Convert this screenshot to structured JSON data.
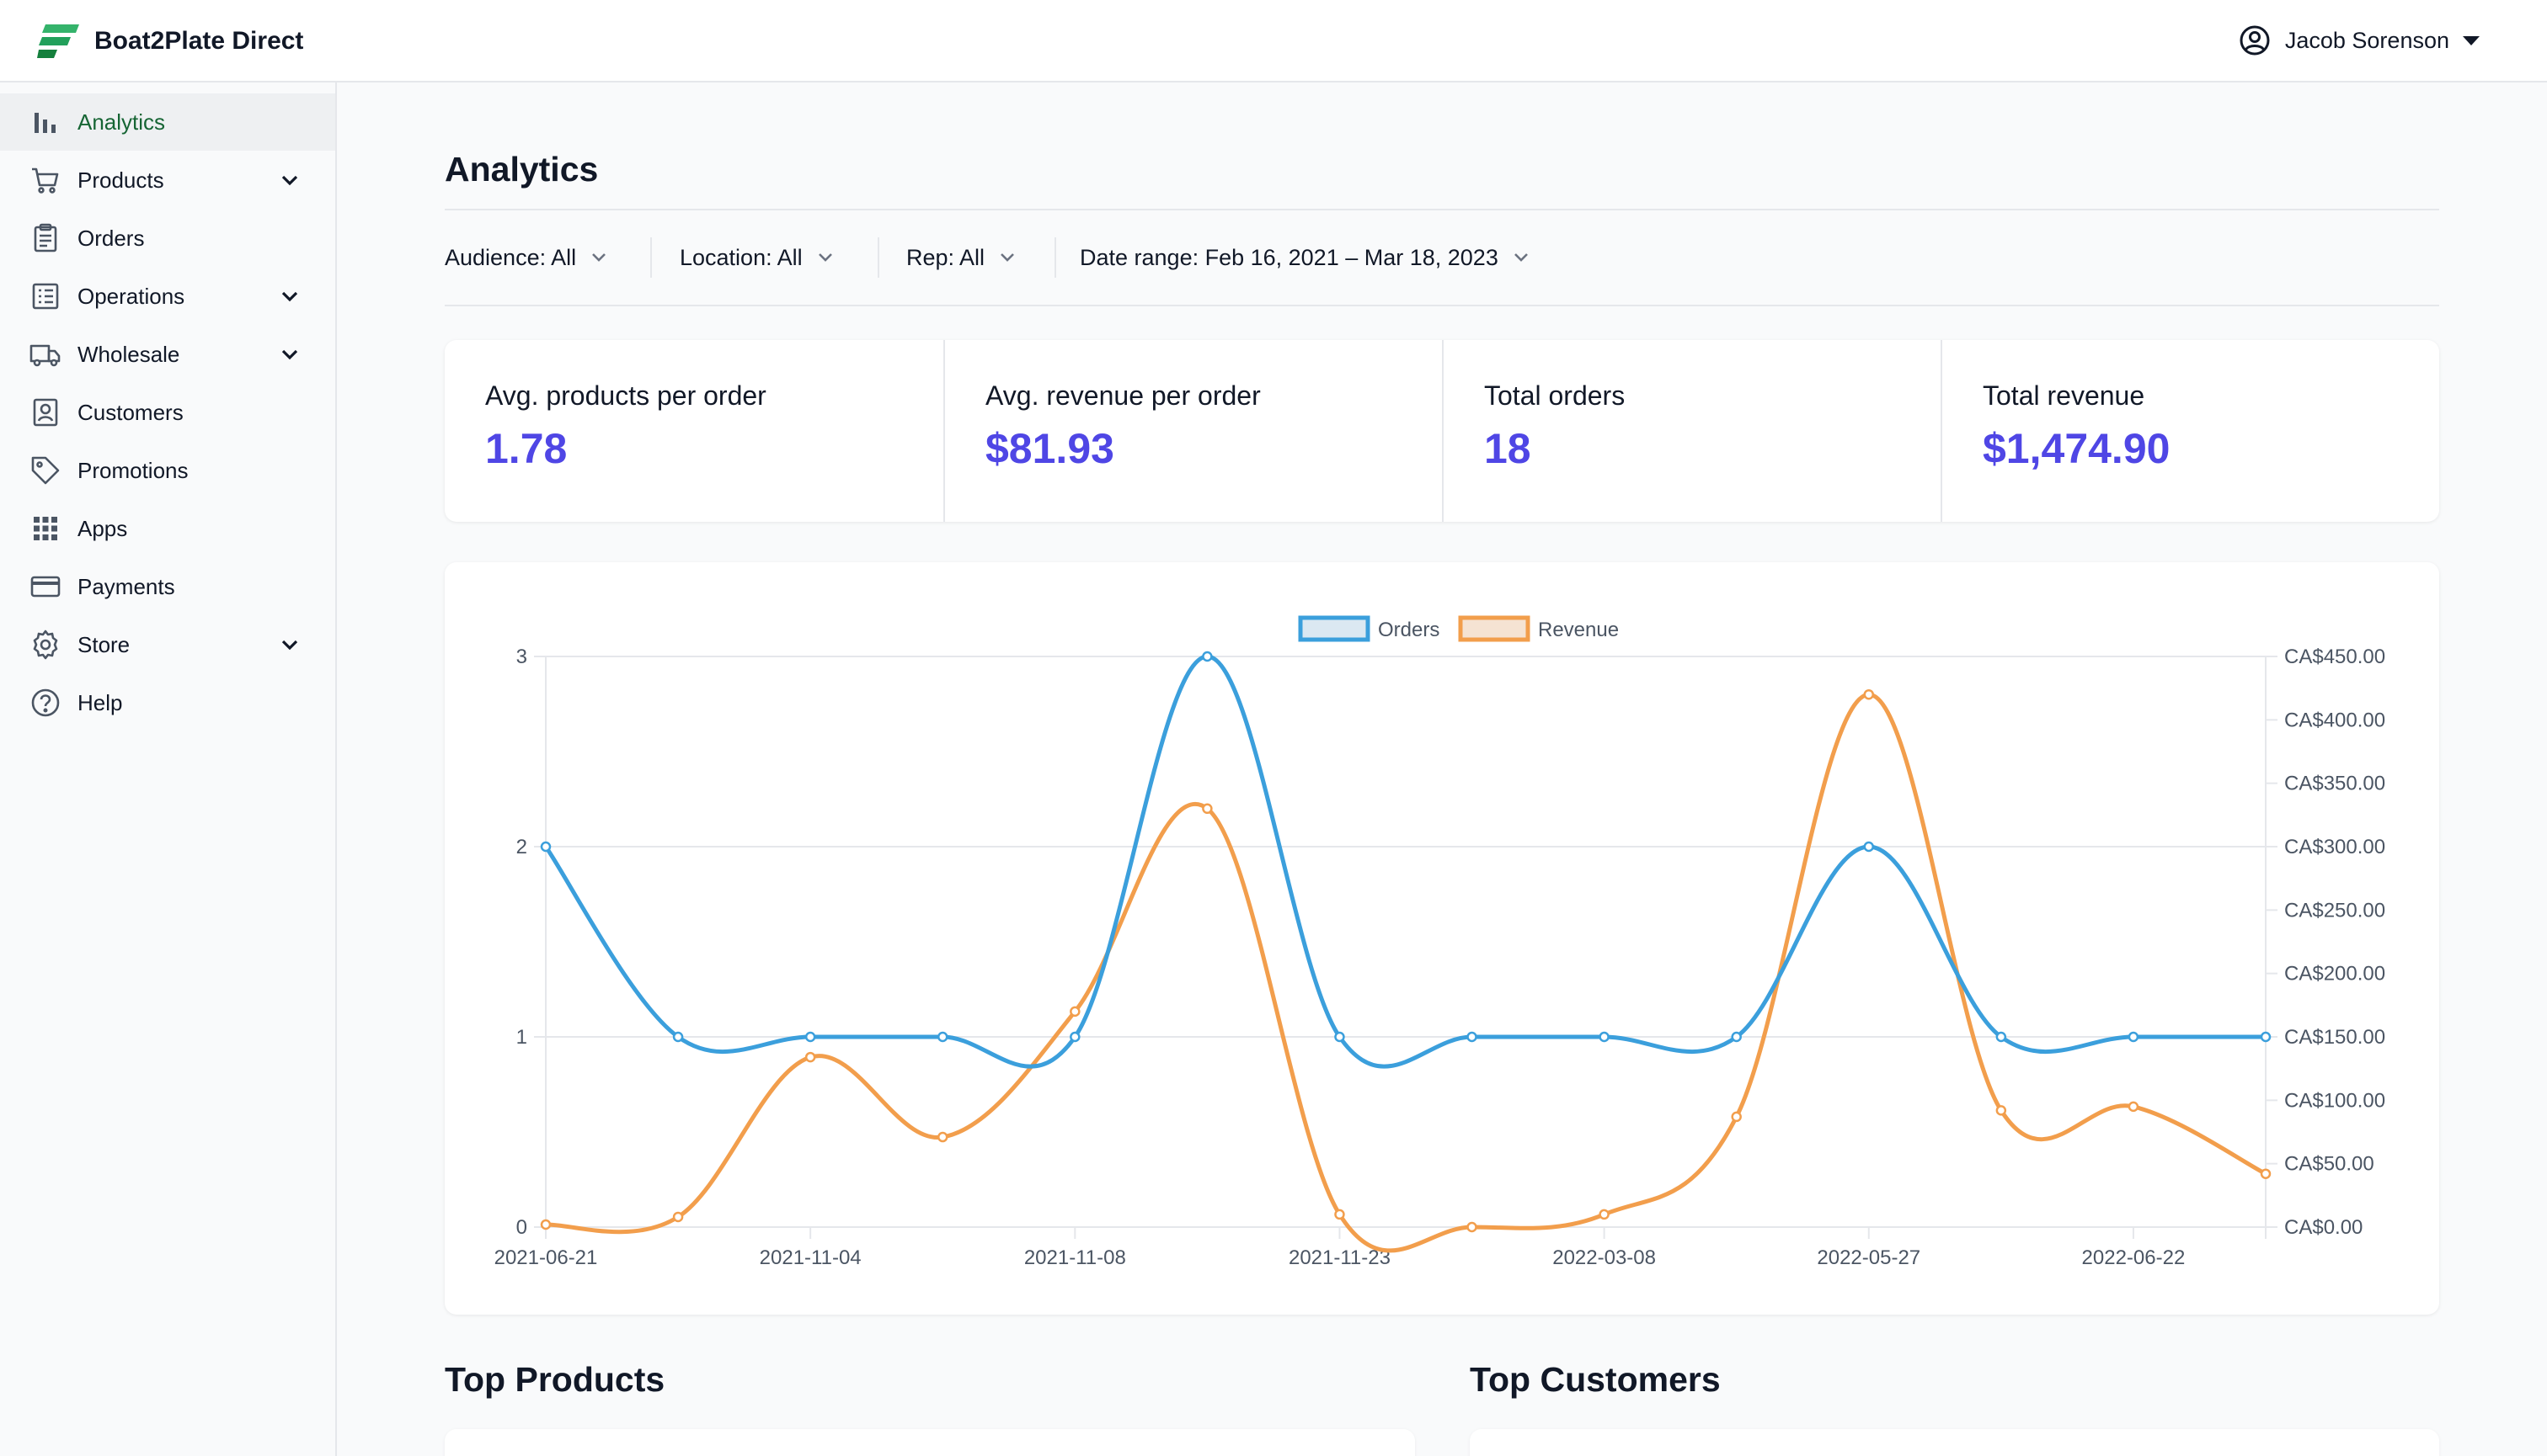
{
  "header": {
    "brand": "Boat2Plate Direct",
    "user": "Jacob Sorenson",
    "brand_color": "#22a05b"
  },
  "sidebar": {
    "items": [
      {
        "label": "Analytics",
        "icon": "bar-chart-icon",
        "active": true,
        "expandable": false
      },
      {
        "label": "Products",
        "icon": "cart-icon",
        "active": false,
        "expandable": true
      },
      {
        "label": "Orders",
        "icon": "clipboard-icon",
        "active": false,
        "expandable": false
      },
      {
        "label": "Operations",
        "icon": "checklist-icon",
        "active": false,
        "expandable": true
      },
      {
        "label": "Wholesale",
        "icon": "truck-icon",
        "active": false,
        "expandable": true
      },
      {
        "label": "Customers",
        "icon": "contact-icon",
        "active": false,
        "expandable": false
      },
      {
        "label": "Promotions",
        "icon": "tag-icon",
        "active": false,
        "expandable": false
      },
      {
        "label": "Apps",
        "icon": "grid-icon",
        "active": false,
        "expandable": false
      },
      {
        "label": "Payments",
        "icon": "credit-card-icon",
        "active": false,
        "expandable": false
      },
      {
        "label": "Store",
        "icon": "gear-icon",
        "active": false,
        "expandable": true
      },
      {
        "label": "Help",
        "icon": "help-circle-icon",
        "active": false,
        "expandable": false
      }
    ]
  },
  "main": {
    "title": "Analytics",
    "filters": {
      "audience": "Audience: All",
      "location": "Location: All",
      "rep": "Rep: All",
      "date_range": "Date range: Feb 16, 2021 – Mar 18, 2023"
    },
    "stats": [
      {
        "label": "Avg. products per order",
        "value": "1.78"
      },
      {
        "label": "Avg. revenue per order",
        "value": "$81.93"
      },
      {
        "label": "Total orders",
        "value": "18"
      },
      {
        "label": "Total revenue",
        "value": "$1,474.90"
      }
    ],
    "sections": {
      "top_products": "Top Products",
      "top_customers": "Top Customers"
    }
  },
  "chart_data": {
    "type": "line",
    "x": [
      "2021-06-21",
      "",
      "2021-11-04",
      "",
      "2021-11-08",
      "",
      "2021-11-23",
      "",
      "2022-03-08",
      "",
      "2022-05-27",
      "",
      "2022-06-22",
      ""
    ],
    "series": [
      {
        "name": "Orders",
        "axis": "left",
        "color": "#3b9fdc",
        "values": [
          2,
          1,
          1,
          1,
          1,
          3,
          1,
          1,
          1,
          1,
          2,
          1,
          1,
          1
        ]
      },
      {
        "name": "Revenue",
        "axis": "right",
        "color": "#f29e4c",
        "values": [
          2,
          8,
          134,
          71,
          170,
          330,
          10,
          0,
          10,
          87,
          420,
          92,
          95,
          42
        ]
      }
    ],
    "y_left": {
      "min": 0,
      "max": 3,
      "ticks": [
        "0",
        "1",
        "2",
        "3"
      ]
    },
    "y_right": {
      "min": 0,
      "max": 450,
      "ticks": [
        "CA$0.00",
        "CA$50.00",
        "CA$100.00",
        "CA$150.00",
        "CA$200.00",
        "CA$250.00",
        "CA$300.00",
        "CA$350.00",
        "CA$400.00",
        "CA$450.00"
      ]
    },
    "grid": true,
    "legend": "top-center"
  }
}
